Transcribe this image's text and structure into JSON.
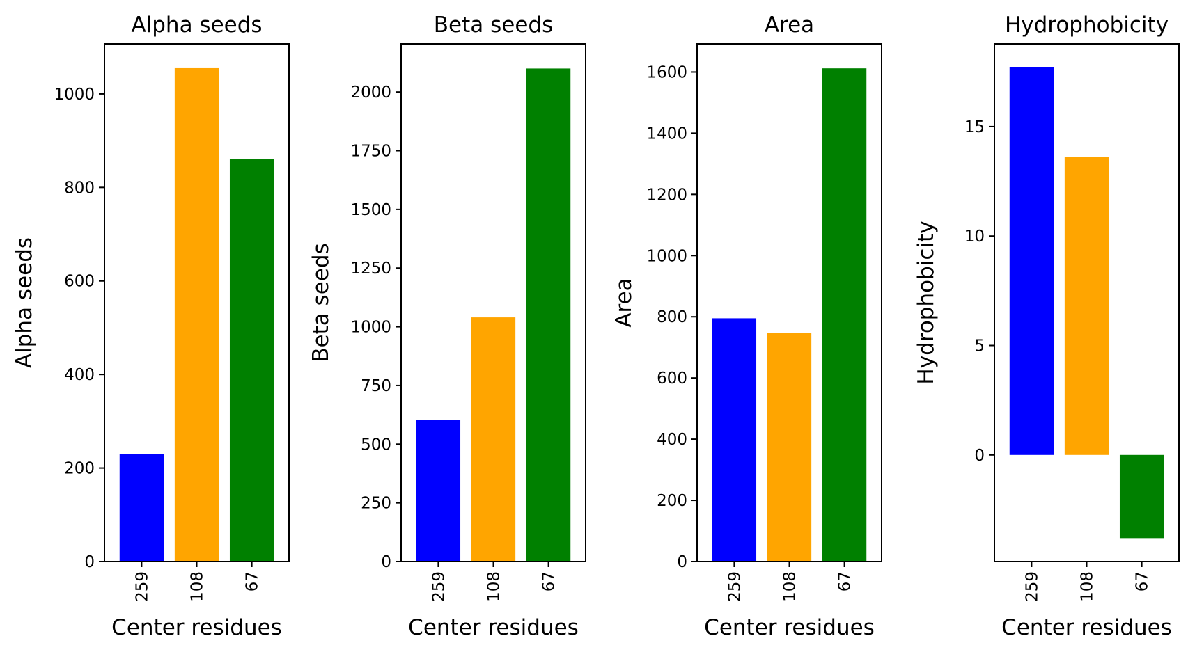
{
  "chart_data": [
    {
      "type": "bar",
      "title": "Alpha seeds",
      "xlabel": "Center residues",
      "ylabel": "Alpha seeds",
      "categories": [
        "259",
        "108",
        "67"
      ],
      "values": [
        230,
        1055,
        860
      ],
      "colors": [
        "#0000ff",
        "#ffa500",
        "#008000"
      ],
      "ylim": [
        0,
        1107
      ],
      "yticks": [
        0,
        200,
        400,
        600,
        800,
        1000
      ]
    },
    {
      "type": "bar",
      "title": "Beta seeds",
      "xlabel": "Center residues",
      "ylabel": "Beta seeds",
      "categories": [
        "259",
        "108",
        "67"
      ],
      "values": [
        603,
        1040,
        2100
      ],
      "colors": [
        "#0000ff",
        "#ffa500",
        "#008000"
      ],
      "ylim": [
        0,
        2205
      ],
      "yticks": [
        0,
        250,
        500,
        750,
        1000,
        1250,
        1500,
        1750,
        2000
      ]
    },
    {
      "type": "bar",
      "title": "Area",
      "xlabel": "Center residues",
      "ylabel": "Area",
      "categories": [
        "259",
        "108",
        "67"
      ],
      "values": [
        795,
        748,
        1612
      ],
      "colors": [
        "#0000ff",
        "#ffa500",
        "#008000"
      ],
      "ylim": [
        0,
        1692
      ],
      "yticks": [
        0,
        200,
        400,
        600,
        800,
        1000,
        1200,
        1400,
        1600
      ]
    },
    {
      "type": "bar",
      "title": "Hydrophobicity",
      "xlabel": "Center residues",
      "ylabel": "Hydrophobicity",
      "categories": [
        "259",
        "108",
        "67"
      ],
      "values": [
        17.7,
        13.6,
        -3.8
      ],
      "colors": [
        "#0000ff",
        "#ffa500",
        "#008000"
      ],
      "ylim": [
        -4.87,
        18.78
      ],
      "yticks": [
        0,
        5,
        10,
        15
      ]
    }
  ]
}
